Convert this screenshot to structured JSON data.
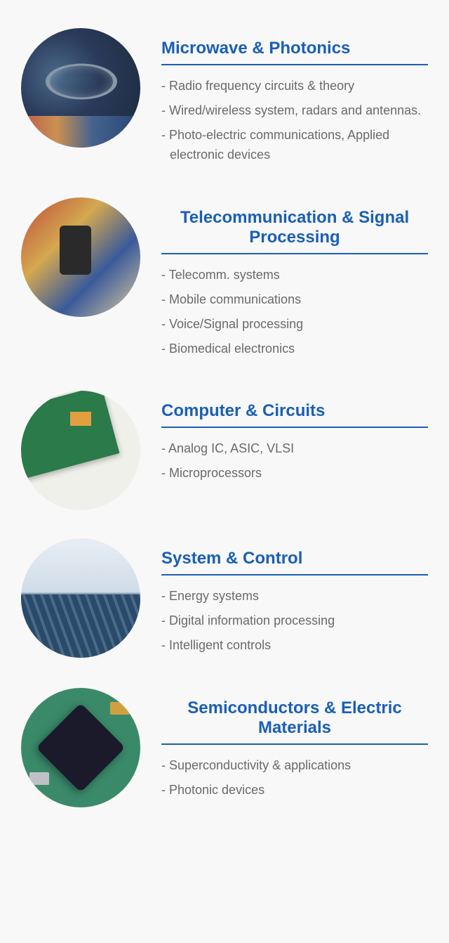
{
  "colors": {
    "heading": "#1a5fb4",
    "underline": "#1a5fb4",
    "item_text": "#6a6a6a",
    "background": "#f8f8f8"
  },
  "typography": {
    "title_fontsize": 24,
    "title_weight": "bold",
    "item_fontsize": 18
  },
  "layout": {
    "circle_diameter": 170,
    "section_gap": 40
  },
  "sections": [
    {
      "title": "Microwave & Photonics",
      "title_align": "left",
      "image_desc": "satellite-dish-cityscape",
      "items": [
        "Radio frequency circuits & theory",
        "Wired/wireless system, radars and antennas.",
        "Photo-electric communications, Applied electronic devices"
      ]
    },
    {
      "title": "Telecommunication & Signal Processing",
      "title_align": "center",
      "image_desc": "people-using-smartphone",
      "items": [
        "Telecomm. systems",
        "Mobile communications",
        "Voice/Signal processing",
        "Biomedical electronics"
      ]
    },
    {
      "title": "Computer & Circuits",
      "title_align": "left",
      "image_desc": "pcb-circuit-board-schematic",
      "items": [
        "Analog IC, ASIC, VLSI",
        "Microprocessors"
      ]
    },
    {
      "title": "System & Control",
      "title_align": "left",
      "image_desc": "solar-panel-field",
      "items": [
        "Energy systems",
        "Digital information processing",
        "Intelligent controls"
      ]
    },
    {
      "title": "Semiconductors & Electric Materials",
      "title_align": "center",
      "image_desc": "microchip-on-board",
      "items": [
        "Superconductivity & applications",
        "Photonic devices"
      ]
    }
  ]
}
